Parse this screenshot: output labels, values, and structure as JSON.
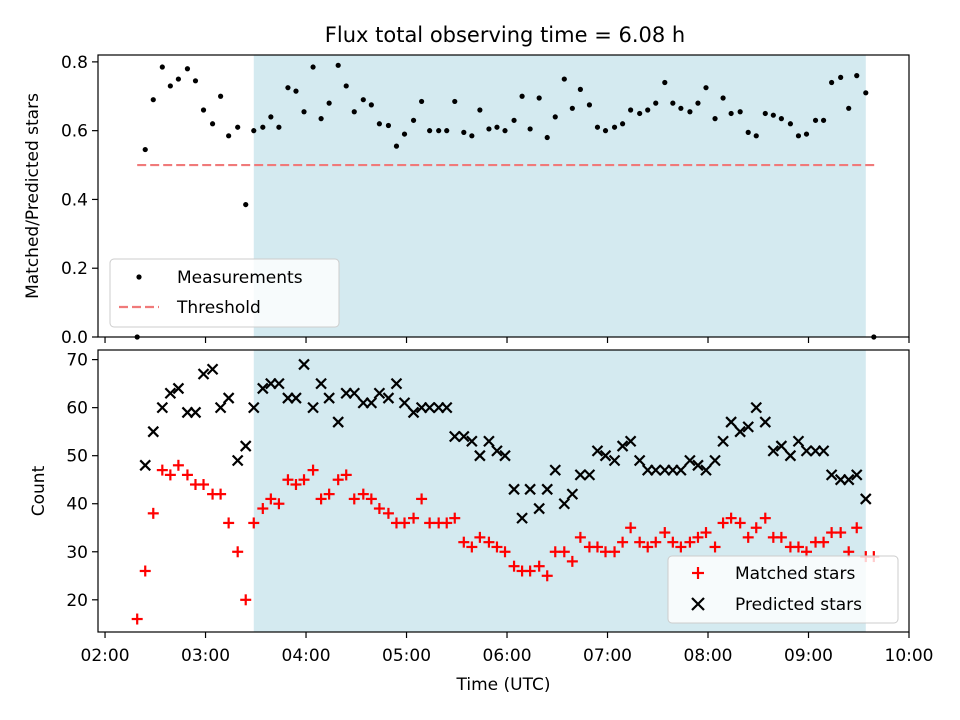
{
  "chart_data": [
    {
      "type": "scatter",
      "title": "Flux total observing time = 6.08 h",
      "xlabel": "",
      "ylabel": "Matched/Predicted stars",
      "ylim": [
        0.0,
        0.82
      ],
      "yticks": [
        "0.0",
        "0.2",
        "0.4",
        "0.6",
        "0.8"
      ],
      "xticks": [
        "02:00",
        "03:00",
        "04:00",
        "05:00",
        "06:00",
        "07:00",
        "08:00",
        "09:00",
        "10:00"
      ],
      "xlim_hours": [
        1.93,
        10.0
      ],
      "shaded_range_hours": [
        3.48,
        9.57
      ],
      "shade_color": "#d4eaf0",
      "legend_position": "lower-left",
      "legend": [
        "Measurements",
        "Threshold"
      ],
      "threshold": {
        "name": "Threshold",
        "value": 0.5,
        "x_range_hours": [
          2.32,
          9.67
        ],
        "color": "#f07a7a"
      },
      "series": [
        {
          "name": "Measurements",
          "color": "#000000",
          "points": [
            [
              2.32,
              0.0
            ],
            [
              2.4,
              0.545
            ],
            [
              2.48,
              0.69
            ],
            [
              2.57,
              0.785
            ],
            [
              2.65,
              0.73
            ],
            [
              2.73,
              0.75
            ],
            [
              2.82,
              0.78
            ],
            [
              2.9,
              0.745
            ],
            [
              2.98,
              0.66
            ],
            [
              3.07,
              0.62
            ],
            [
              3.15,
              0.7
            ],
            [
              3.23,
              0.585
            ],
            [
              3.32,
              0.61
            ],
            [
              3.4,
              0.385
            ],
            [
              3.48,
              0.6
            ],
            [
              3.57,
              0.61
            ],
            [
              3.65,
              0.64
            ],
            [
              3.73,
              0.61
            ],
            [
              3.82,
              0.725
            ],
            [
              3.9,
              0.715
            ],
            [
              3.98,
              0.655
            ],
            [
              4.07,
              0.785
            ],
            [
              4.15,
              0.635
            ],
            [
              4.23,
              0.68
            ],
            [
              4.32,
              0.79
            ],
            [
              4.4,
              0.73
            ],
            [
              4.48,
              0.655
            ],
            [
              4.57,
              0.69
            ],
            [
              4.65,
              0.675
            ],
            [
              4.73,
              0.62
            ],
            [
              4.82,
              0.615
            ],
            [
              4.9,
              0.555
            ],
            [
              4.98,
              0.59
            ],
            [
              5.07,
              0.63
            ],
            [
              5.15,
              0.685
            ],
            [
              5.23,
              0.6
            ],
            [
              5.32,
              0.6
            ],
            [
              5.4,
              0.6
            ],
            [
              5.48,
              0.685
            ],
            [
              5.57,
              0.595
            ],
            [
              5.65,
              0.585
            ],
            [
              5.73,
              0.66
            ],
            [
              5.82,
              0.605
            ],
            [
              5.9,
              0.61
            ],
            [
              5.98,
              0.6
            ],
            [
              6.07,
              0.63
            ],
            [
              6.15,
              0.7
            ],
            [
              6.23,
              0.605
            ],
            [
              6.32,
              0.695
            ],
            [
              6.4,
              0.58
            ],
            [
              6.48,
              0.64
            ],
            [
              6.57,
              0.75
            ],
            [
              6.65,
              0.665
            ],
            [
              6.73,
              0.72
            ],
            [
              6.82,
              0.675
            ],
            [
              6.9,
              0.61
            ],
            [
              6.98,
              0.6
            ],
            [
              7.07,
              0.61
            ],
            [
              7.15,
              0.62
            ],
            [
              7.23,
              0.66
            ],
            [
              7.32,
              0.65
            ],
            [
              7.4,
              0.66
            ],
            [
              7.48,
              0.68
            ],
            [
              7.57,
              0.74
            ],
            [
              7.65,
              0.68
            ],
            [
              7.73,
              0.665
            ],
            [
              7.82,
              0.655
            ],
            [
              7.9,
              0.68
            ],
            [
              7.98,
              0.725
            ],
            [
              8.07,
              0.635
            ],
            [
              8.15,
              0.695
            ],
            [
              8.23,
              0.65
            ],
            [
              8.32,
              0.655
            ],
            [
              8.4,
              0.595
            ],
            [
              8.48,
              0.585
            ],
            [
              8.57,
              0.65
            ],
            [
              8.65,
              0.645
            ],
            [
              8.73,
              0.635
            ],
            [
              8.82,
              0.62
            ],
            [
              8.9,
              0.585
            ],
            [
              8.98,
              0.59
            ],
            [
              9.07,
              0.63
            ],
            [
              9.15,
              0.63
            ],
            [
              9.23,
              0.74
            ],
            [
              9.32,
              0.755
            ],
            [
              9.4,
              0.665
            ],
            [
              9.48,
              0.76
            ],
            [
              9.57,
              0.71
            ],
            [
              9.65,
              0.0
            ]
          ]
        }
      ]
    },
    {
      "type": "scatter",
      "title": "",
      "xlabel": "Time (UTC)",
      "ylabel": "Count",
      "ylim": [
        13.3,
        72
      ],
      "yticks": [
        "20",
        "30",
        "40",
        "50",
        "60",
        "70"
      ],
      "xticks": [
        "02:00",
        "03:00",
        "04:00",
        "05:00",
        "06:00",
        "07:00",
        "08:00",
        "09:00",
        "10:00"
      ],
      "xlim_hours": [
        1.93,
        10.0
      ],
      "shaded_range_hours": [
        3.48,
        9.57
      ],
      "shade_color": "#d4eaf0",
      "legend_position": "lower-right",
      "legend": [
        "Matched stars",
        "Predicted stars"
      ],
      "series": [
        {
          "name": "Matched stars",
          "color": "#ff0000",
          "marker": "plus",
          "points": [
            [
              2.32,
              16
            ],
            [
              2.4,
              26
            ],
            [
              2.48,
              38
            ],
            [
              2.57,
              47
            ],
            [
              2.65,
              46
            ],
            [
              2.73,
              48
            ],
            [
              2.82,
              46
            ],
            [
              2.9,
              44
            ],
            [
              2.98,
              44
            ],
            [
              3.07,
              42
            ],
            [
              3.15,
              42
            ],
            [
              3.23,
              36
            ],
            [
              3.32,
              30
            ],
            [
              3.4,
              20
            ],
            [
              3.48,
              36
            ],
            [
              3.57,
              39
            ],
            [
              3.65,
              41
            ],
            [
              3.73,
              40
            ],
            [
              3.82,
              45
            ],
            [
              3.9,
              44
            ],
            [
              3.98,
              45
            ],
            [
              4.07,
              47
            ],
            [
              4.15,
              41
            ],
            [
              4.23,
              42
            ],
            [
              4.32,
              45
            ],
            [
              4.4,
              46
            ],
            [
              4.48,
              41
            ],
            [
              4.57,
              42
            ],
            [
              4.65,
              41
            ],
            [
              4.73,
              39
            ],
            [
              4.82,
              38
            ],
            [
              4.9,
              36
            ],
            [
              4.98,
              36
            ],
            [
              5.07,
              37
            ],
            [
              5.15,
              41
            ],
            [
              5.23,
              36
            ],
            [
              5.32,
              36
            ],
            [
              5.4,
              36
            ],
            [
              5.48,
              37
            ],
            [
              5.57,
              32
            ],
            [
              5.65,
              31
            ],
            [
              5.73,
              33
            ],
            [
              5.82,
              32
            ],
            [
              5.9,
              31
            ],
            [
              5.98,
              30
            ],
            [
              6.07,
              27
            ],
            [
              6.15,
              26
            ],
            [
              6.23,
              26
            ],
            [
              6.32,
              27
            ],
            [
              6.4,
              25
            ],
            [
              6.48,
              30
            ],
            [
              6.57,
              30
            ],
            [
              6.65,
              28
            ],
            [
              6.73,
              33
            ],
            [
              6.82,
              31
            ],
            [
              6.9,
              31
            ],
            [
              6.98,
              30
            ],
            [
              7.07,
              30
            ],
            [
              7.15,
              32
            ],
            [
              7.23,
              35
            ],
            [
              7.32,
              32
            ],
            [
              7.4,
              31
            ],
            [
              7.48,
              32
            ],
            [
              7.57,
              34
            ],
            [
              7.65,
              32
            ],
            [
              7.73,
              31
            ],
            [
              7.82,
              32
            ],
            [
              7.9,
              33
            ],
            [
              7.98,
              34
            ],
            [
              8.07,
              31
            ],
            [
              8.15,
              36
            ],
            [
              8.23,
              37
            ],
            [
              8.32,
              36
            ],
            [
              8.4,
              33
            ],
            [
              8.48,
              35
            ],
            [
              8.57,
              37
            ],
            [
              8.65,
              33
            ],
            [
              8.73,
              33
            ],
            [
              8.82,
              31
            ],
            [
              8.9,
              31
            ],
            [
              8.98,
              30
            ],
            [
              9.07,
              32
            ],
            [
              9.15,
              32
            ],
            [
              9.23,
              34
            ],
            [
              9.32,
              34
            ],
            [
              9.4,
              30
            ],
            [
              9.48,
              35
            ],
            [
              9.57,
              29
            ],
            [
              9.65,
              29
            ]
          ]
        },
        {
          "name": "Predicted stars",
          "color": "#000000",
          "marker": "x",
          "points": [
            [
              2.4,
              48
            ],
            [
              2.48,
              55
            ],
            [
              2.57,
              60
            ],
            [
              2.65,
              63
            ],
            [
              2.73,
              64
            ],
            [
              2.82,
              59
            ],
            [
              2.9,
              59
            ],
            [
              2.98,
              67
            ],
            [
              3.07,
              68
            ],
            [
              3.15,
              60
            ],
            [
              3.23,
              62
            ],
            [
              3.32,
              49
            ],
            [
              3.4,
              52
            ],
            [
              3.48,
              60
            ],
            [
              3.57,
              64
            ],
            [
              3.65,
              65
            ],
            [
              3.73,
              65
            ],
            [
              3.82,
              62
            ],
            [
              3.9,
              62
            ],
            [
              3.98,
              69
            ],
            [
              4.07,
              60
            ],
            [
              4.15,
              65
            ],
            [
              4.23,
              62
            ],
            [
              4.32,
              57
            ],
            [
              4.4,
              63
            ],
            [
              4.48,
              63
            ],
            [
              4.57,
              61
            ],
            [
              4.65,
              61
            ],
            [
              4.73,
              63
            ],
            [
              4.82,
              62
            ],
            [
              4.9,
              65
            ],
            [
              4.98,
              61
            ],
            [
              5.07,
              59
            ],
            [
              5.15,
              60
            ],
            [
              5.23,
              60
            ],
            [
              5.32,
              60
            ],
            [
              5.4,
              60
            ],
            [
              5.48,
              54
            ],
            [
              5.57,
              54
            ],
            [
              5.65,
              53
            ],
            [
              5.73,
              50
            ],
            [
              5.82,
              53
            ],
            [
              5.9,
              51
            ],
            [
              5.98,
              50
            ],
            [
              6.07,
              43
            ],
            [
              6.15,
              37
            ],
            [
              6.23,
              43
            ],
            [
              6.32,
              39
            ],
            [
              6.4,
              43
            ],
            [
              6.48,
              47
            ],
            [
              6.57,
              40
            ],
            [
              6.65,
              42
            ],
            [
              6.73,
              46
            ],
            [
              6.82,
              46
            ],
            [
              6.9,
              51
            ],
            [
              6.98,
              50
            ],
            [
              7.07,
              49
            ],
            [
              7.15,
              52
            ],
            [
              7.23,
              53
            ],
            [
              7.32,
              49
            ],
            [
              7.4,
              47
            ],
            [
              7.48,
              47
            ],
            [
              7.57,
              47
            ],
            [
              7.65,
              47
            ],
            [
              7.73,
              47
            ],
            [
              7.82,
              49
            ],
            [
              7.9,
              48
            ],
            [
              7.98,
              47
            ],
            [
              8.07,
              49
            ],
            [
              8.15,
              53
            ],
            [
              8.23,
              57
            ],
            [
              8.32,
              55
            ],
            [
              8.4,
              56
            ],
            [
              8.48,
              60
            ],
            [
              8.57,
              57
            ],
            [
              8.65,
              51
            ],
            [
              8.73,
              52
            ],
            [
              8.82,
              50
            ],
            [
              8.9,
              53
            ],
            [
              8.98,
              51
            ],
            [
              9.07,
              51
            ],
            [
              9.15,
              51
            ],
            [
              9.23,
              46
            ],
            [
              9.32,
              45
            ],
            [
              9.4,
              45
            ],
            [
              9.48,
              46
            ],
            [
              9.57,
              41
            ]
          ]
        }
      ]
    }
  ]
}
